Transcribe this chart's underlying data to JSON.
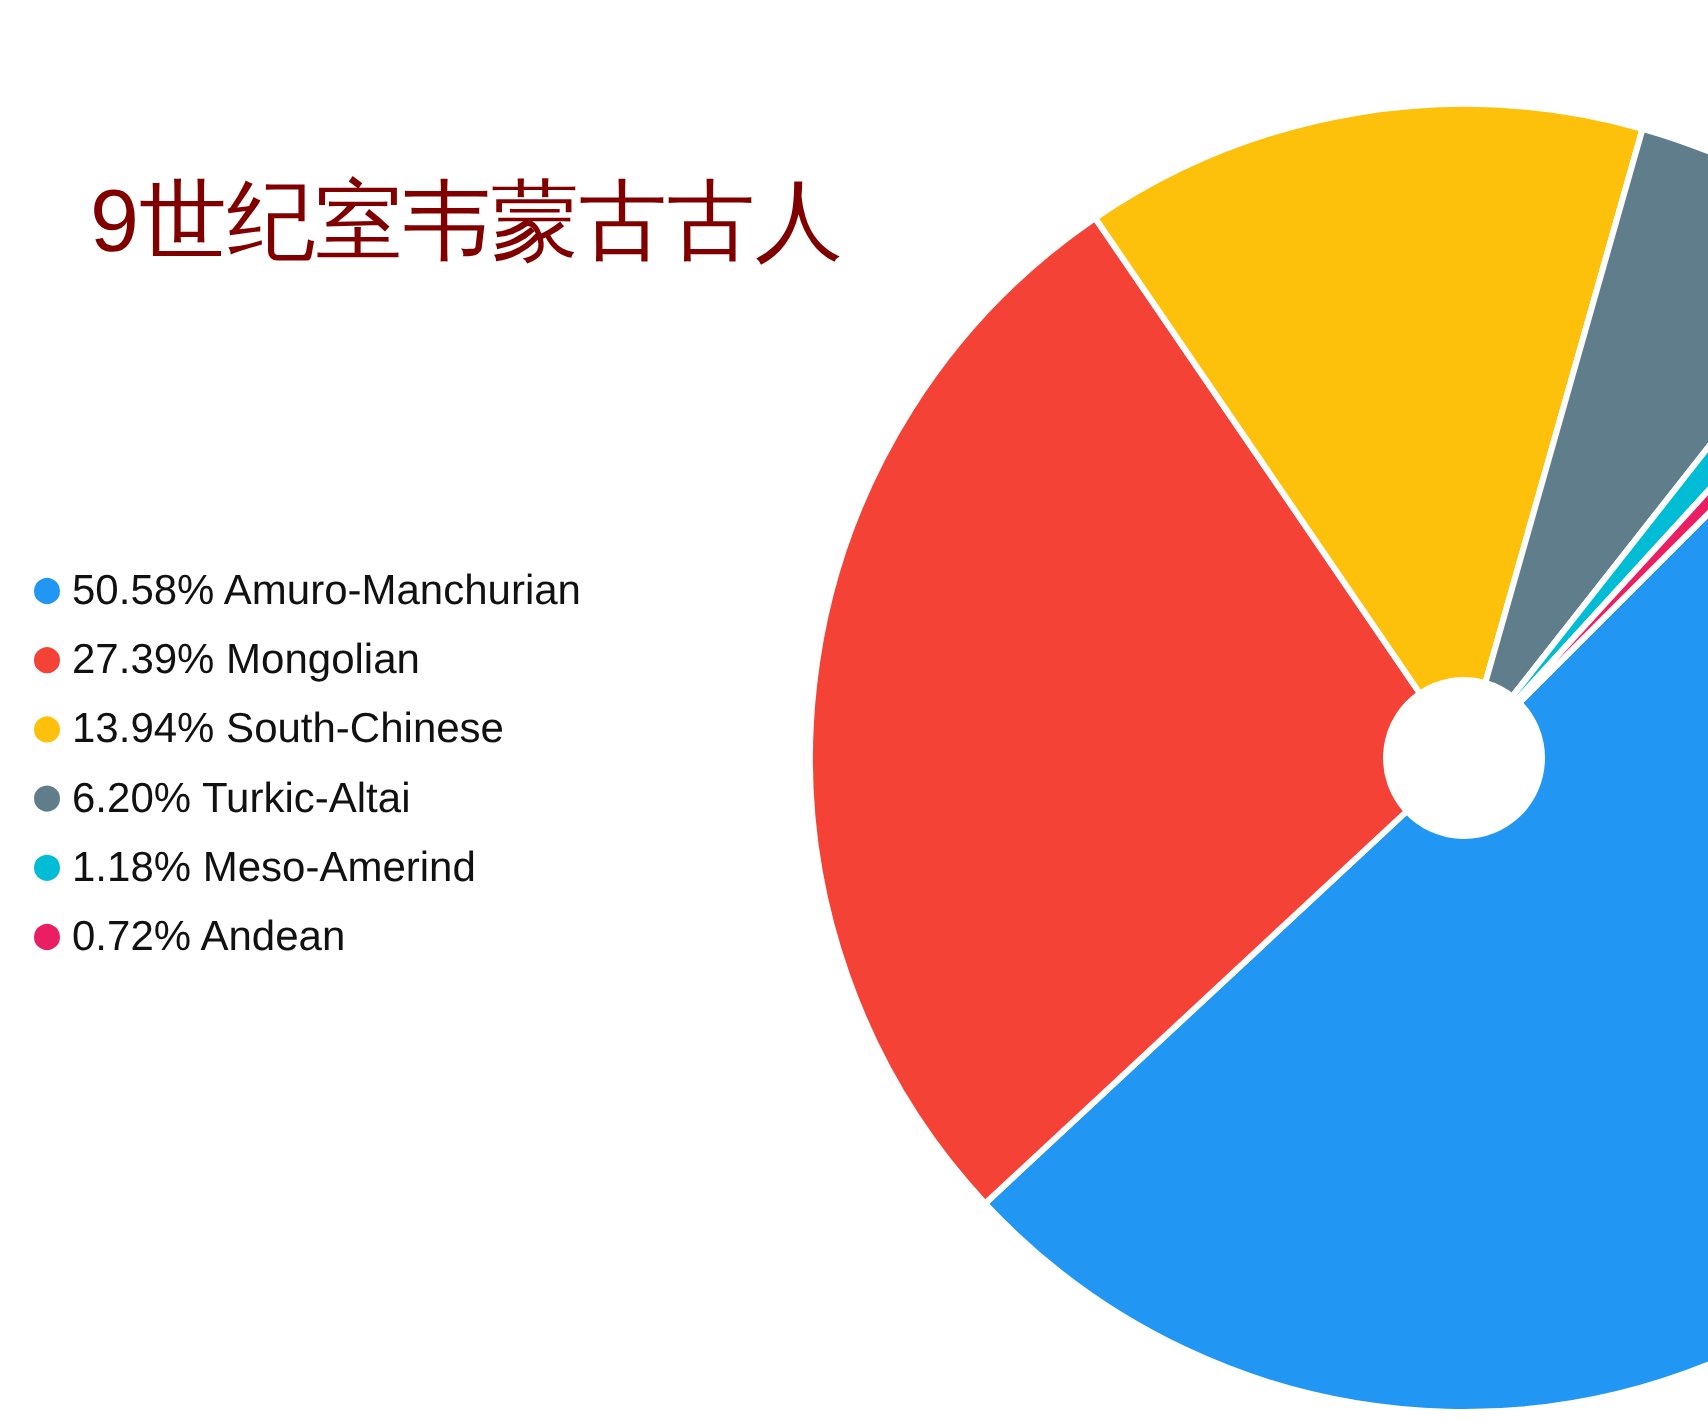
{
  "chart_data": {
    "type": "pie",
    "title": "9世纪室韦蒙古古人",
    "categories": [
      "Amuro-Manchurian",
      "Mongolian",
      "South-Chinese",
      "Turkic-Altai",
      "Meso-Amerind",
      "Andean"
    ],
    "values": [
      50.58,
      27.39,
      13.94,
      6.2,
      1.18,
      0.72
    ],
    "value_labels": [
      "50.58%",
      "27.39%",
      "13.94%",
      "6.20%",
      "1.18%",
      "0.72%"
    ],
    "colors": [
      "#2196f3",
      "#f44336",
      "#fdc00b",
      "#607d8b",
      "#00bcd4",
      "#e91e63"
    ],
    "legend": "left"
  }
}
